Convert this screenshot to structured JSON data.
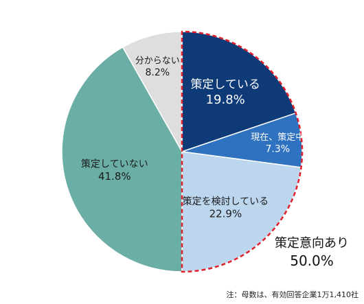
{
  "chart_data": {
    "type": "pie",
    "start": "top",
    "direction": "clockwise",
    "slices": [
      {
        "label": "策定している",
        "value": 19.8,
        "value_label": "19.8%",
        "color": "#0f3a78",
        "text_color": "#ffffff"
      },
      {
        "label": "現在、策定中",
        "value": 7.3,
        "value_label": "7.3%",
        "color": "#2f72c0",
        "text_color": "#ffffff"
      },
      {
        "label": "策定を検討している",
        "value": 22.9,
        "value_label": "22.9%",
        "color": "#bcd6ee",
        "text_color": "#1a1a1a"
      },
      {
        "label": "策定していない",
        "value": 41.8,
        "value_label": "41.8%",
        "color": "#6aaea6",
        "text_color": "#1a1a1a"
      },
      {
        "label": "分からない",
        "value": 8.2,
        "value_label": "8.2%",
        "color": "#dedede",
        "text_color": "#1a1a1a"
      }
    ],
    "highlight": {
      "label": "策定意向あり",
      "value": 50.0,
      "value_label": "50.0%",
      "includes": [
        "策定している",
        "現在、策定中",
        "策定を検討している"
      ],
      "outline_color": "#e0202a"
    }
  },
  "note": "注：母数は、有効回答企業1万1,410社"
}
